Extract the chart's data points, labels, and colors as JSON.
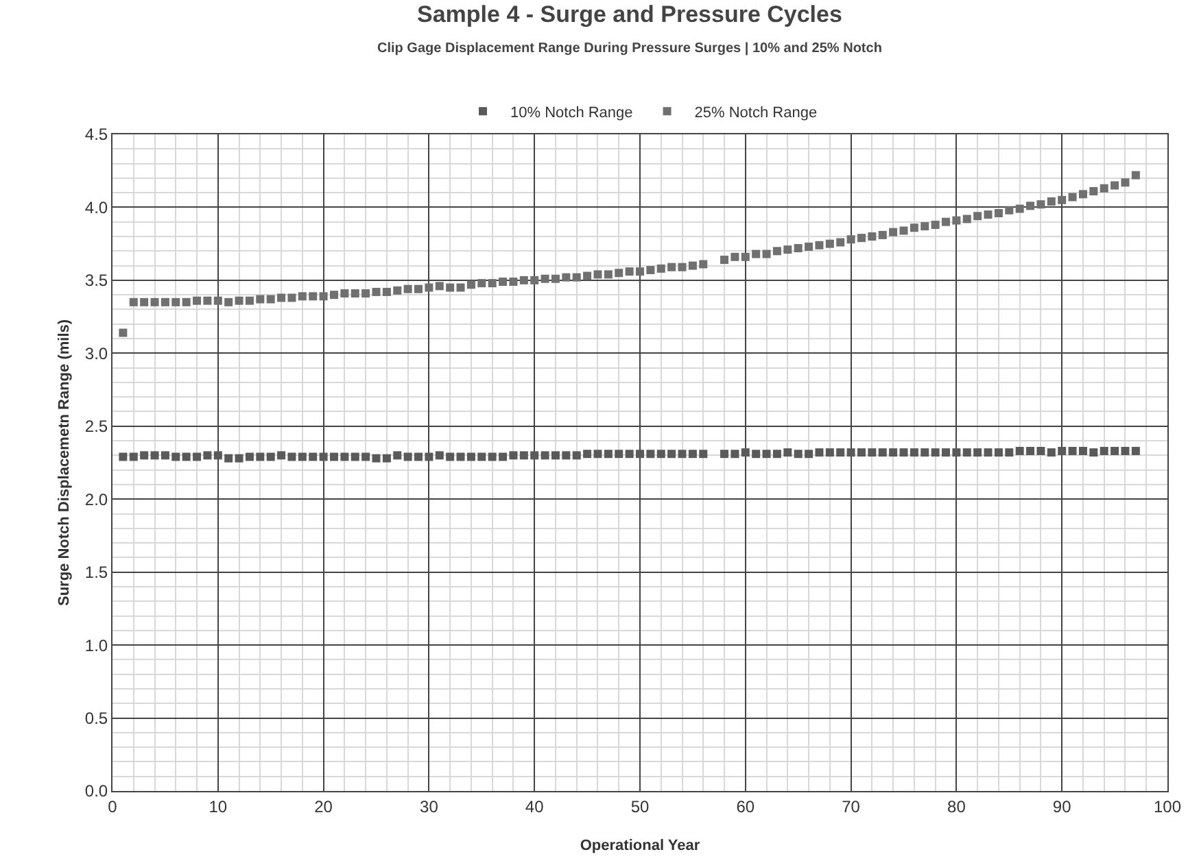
{
  "chart_data": {
    "type": "scatter",
    "title": "Sample 4 - Surge and Pressure Cycles",
    "subtitle": "Clip Gage Displacement Range During Pressure Surges | 10% and 25% Notch",
    "xlabel": "Operational Year",
    "ylabel": "Surge Notch Displacemetn Range (mils)",
    "x": [
      1,
      2,
      3,
      4,
      5,
      6,
      7,
      8,
      9,
      10,
      11,
      12,
      13,
      14,
      15,
      16,
      17,
      18,
      19,
      20,
      21,
      22,
      23,
      24,
      25,
      26,
      27,
      28,
      29,
      30,
      31,
      32,
      33,
      34,
      35,
      36,
      37,
      38,
      39,
      40,
      41,
      42,
      43,
      44,
      45,
      46,
      47,
      48,
      49,
      50,
      51,
      52,
      53,
      54,
      55,
      56,
      58,
      59,
      60,
      61,
      62,
      63,
      64,
      65,
      66,
      67,
      68,
      69,
      70,
      71,
      72,
      73,
      74,
      75,
      76,
      77,
      78,
      79,
      80,
      81,
      82,
      83,
      84,
      85,
      86,
      87,
      88,
      89,
      90,
      91,
      92,
      93,
      94,
      95,
      96,
      97
    ],
    "series": [
      {
        "name": "10% Notch Range",
        "color": "#5a5a5a",
        "values": [
          2.29,
          2.29,
          2.3,
          2.3,
          2.3,
          2.29,
          2.29,
          2.29,
          2.3,
          2.3,
          2.28,
          2.28,
          2.29,
          2.29,
          2.29,
          2.3,
          2.29,
          2.29,
          2.29,
          2.29,
          2.29,
          2.29,
          2.29,
          2.29,
          2.28,
          2.28,
          2.3,
          2.29,
          2.29,
          2.29,
          2.3,
          2.29,
          2.29,
          2.29,
          2.29,
          2.29,
          2.29,
          2.3,
          2.3,
          2.3,
          2.3,
          2.3,
          2.3,
          2.3,
          2.31,
          2.31,
          2.31,
          2.31,
          2.31,
          2.31,
          2.31,
          2.31,
          2.31,
          2.31,
          2.31,
          2.31,
          2.31,
          2.31,
          2.32,
          2.31,
          2.31,
          2.31,
          2.32,
          2.31,
          2.31,
          2.32,
          2.32,
          2.32,
          2.32,
          2.32,
          2.32,
          2.32,
          2.32,
          2.32,
          2.32,
          2.32,
          2.32,
          2.32,
          2.32,
          2.32,
          2.32,
          2.32,
          2.32,
          2.32,
          2.33,
          2.33,
          2.33,
          2.32,
          2.33,
          2.33,
          2.33,
          2.32,
          2.33,
          2.33,
          2.33,
          2.33
        ]
      },
      {
        "name": "25% Notch Range",
        "color": "#707070",
        "values": [
          3.14,
          3.35,
          3.35,
          3.35,
          3.35,
          3.35,
          3.35,
          3.36,
          3.36,
          3.36,
          3.35,
          3.36,
          3.36,
          3.37,
          3.37,
          3.38,
          3.38,
          3.39,
          3.39,
          3.39,
          3.4,
          3.41,
          3.41,
          3.41,
          3.42,
          3.42,
          3.43,
          3.44,
          3.44,
          3.45,
          3.46,
          3.45,
          3.45,
          3.47,
          3.48,
          3.48,
          3.49,
          3.49,
          3.5,
          3.5,
          3.51,
          3.51,
          3.52,
          3.52,
          3.53,
          3.54,
          3.54,
          3.55,
          3.56,
          3.56,
          3.57,
          3.58,
          3.59,
          3.59,
          3.6,
          3.61,
          3.64,
          3.66,
          3.66,
          3.68,
          3.68,
          3.7,
          3.71,
          3.72,
          3.73,
          3.74,
          3.75,
          3.76,
          3.78,
          3.79,
          3.8,
          3.81,
          3.83,
          3.84,
          3.86,
          3.87,
          3.88,
          3.9,
          3.91,
          3.92,
          3.94,
          3.95,
          3.96,
          3.98,
          3.99,
          4.01,
          4.02,
          4.04,
          4.05,
          4.07,
          4.09,
          4.11,
          4.13,
          4.15,
          4.17,
          4.22
        ]
      }
    ],
    "xlim": [
      0,
      100
    ],
    "xticks": [
      0,
      10,
      20,
      30,
      40,
      50,
      60,
      70,
      80,
      90,
      100
    ],
    "ylim": [
      0,
      4.5
    ],
    "yticks": [
      {
        "value": 0,
        "label": "0.0"
      },
      {
        "value": 0.5,
        "label": "0.5"
      },
      {
        "value": 1,
        "label": "1.0"
      },
      {
        "value": 1.5,
        "label": "1.5"
      },
      {
        "value": 2,
        "label": "2.0"
      },
      {
        "value": 2.5,
        "label": "2.5"
      },
      {
        "value": 3,
        "label": "3.0"
      },
      {
        "value": 3.5,
        "label": "3.5"
      },
      {
        "value": 4,
        "label": "4.0"
      },
      {
        "value": 4.5,
        "label": "4.5"
      }
    ],
    "grid": true,
    "legend": "top",
    "marker": "square"
  }
}
